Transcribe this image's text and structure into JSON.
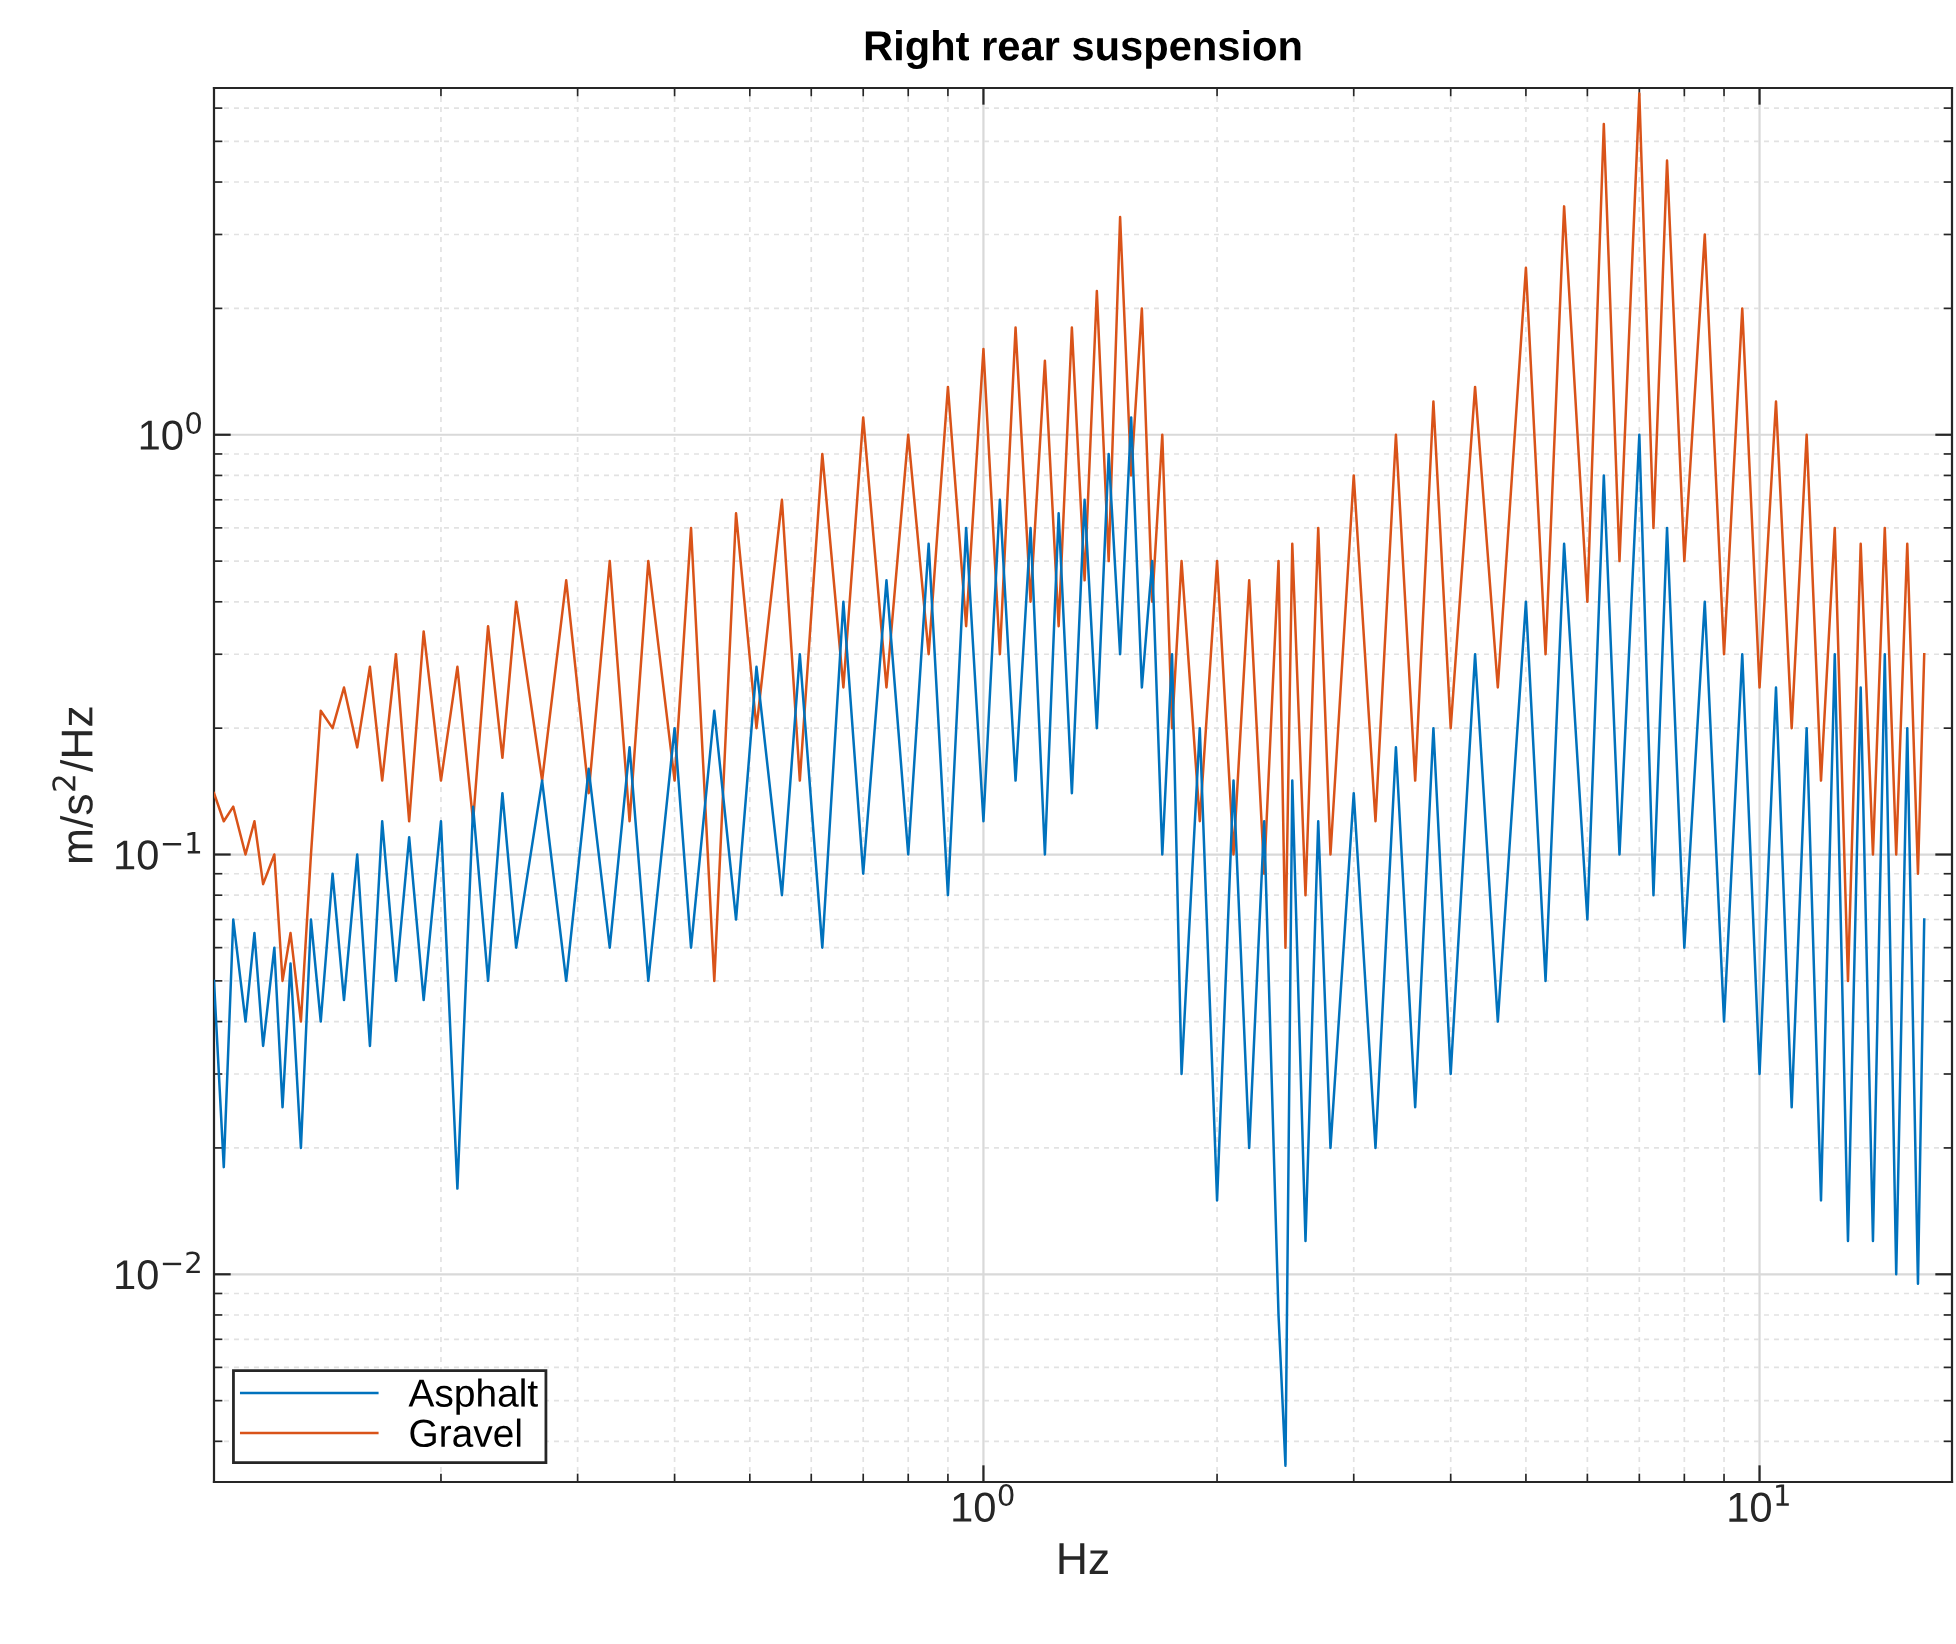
{
  "chart_data": {
    "type": "line",
    "title": "Right rear suspension",
    "xlabel": "Hz",
    "ylabel": "m/s$^{2}$/Hz",
    "log": "xy",
    "grid": true,
    "legend": "bottom left",
    "line_style": "solid",
    "marker": "none",
    "xlim": [
      0.102,
      17.7
    ],
    "ylim": [
      0.0032,
      6.7
    ],
    "xticks": [
      {
        "value": 1,
        "label": "10$^{0}$"
      },
      {
        "value": 10,
        "label": "10$^{1}$"
      }
    ],
    "yticks": [
      {
        "value": 0.01,
        "label": "10$^{−2}$"
      },
      {
        "value": 0.1,
        "label": "10$^{−1}$"
      },
      {
        "value": 1,
        "label": "10$^{0}$"
      }
    ],
    "x": [
      0.102,
      0.105,
      0.108,
      0.112,
      0.115,
      0.118,
      0.122,
      0.125,
      0.128,
      0.132,
      0.136,
      0.14,
      0.145,
      0.15,
      0.156,
      0.162,
      0.168,
      0.175,
      0.182,
      0.19,
      0.2,
      0.21,
      0.22,
      0.23,
      0.24,
      0.25,
      0.27,
      0.29,
      0.31,
      0.33,
      0.35,
      0.37,
      0.4,
      0.42,
      0.45,
      0.48,
      0.51,
      0.55,
      0.58,
      0.62,
      0.66,
      0.7,
      0.75,
      0.8,
      0.85,
      0.9,
      0.95,
      1.0,
      1.05,
      1.1,
      1.15,
      1.2,
      1.25,
      1.3,
      1.35,
      1.4,
      1.45,
      1.5,
      1.55,
      1.6,
      1.65,
      1.7,
      1.75,
      1.8,
      1.9,
      2.0,
      2.1,
      2.2,
      2.3,
      2.4,
      2.45,
      2.5,
      2.6,
      2.7,
      2.8,
      3.0,
      3.2,
      3.4,
      3.6,
      3.8,
      4.0,
      4.3,
      4.6,
      5.0,
      5.3,
      5.6,
      6.0,
      6.3,
      6.6,
      7.0,
      7.3,
      7.6,
      8.0,
      8.5,
      9.0,
      9.5,
      10,
      10.5,
      11,
      11.5,
      12,
      12.5,
      13,
      13.5,
      14,
      14.5,
      15,
      15.5,
      16,
      16.3
    ],
    "series": [
      {
        "name": "Asphalt",
        "color": "#0072bd",
        "values": [
          0.05,
          0.018,
          0.07,
          0.04,
          0.065,
          0.035,
          0.06,
          0.025,
          0.055,
          0.02,
          0.07,
          0.04,
          0.09,
          0.045,
          0.1,
          0.035,
          0.12,
          0.05,
          0.11,
          0.045,
          0.12,
          0.016,
          0.13,
          0.05,
          0.14,
          0.06,
          0.15,
          0.05,
          0.16,
          0.06,
          0.18,
          0.05,
          0.2,
          0.06,
          0.22,
          0.07,
          0.28,
          0.08,
          0.3,
          0.06,
          0.4,
          0.09,
          0.45,
          0.1,
          0.55,
          0.08,
          0.6,
          0.12,
          0.7,
          0.15,
          0.6,
          0.1,
          0.65,
          0.14,
          0.7,
          0.2,
          0.9,
          0.3,
          1.1,
          0.25,
          0.5,
          0.1,
          0.3,
          0.03,
          0.2,
          0.015,
          0.15,
          0.02,
          0.12,
          0.008,
          0.0035,
          0.15,
          0.012,
          0.12,
          0.02,
          0.14,
          0.02,
          0.18,
          0.025,
          0.2,
          0.03,
          0.3,
          0.04,
          0.4,
          0.05,
          0.55,
          0.07,
          0.8,
          0.1,
          1.0,
          0.08,
          0.6,
          0.06,
          0.4,
          0.04,
          0.3,
          0.03,
          0.25,
          0.025,
          0.2,
          0.015,
          0.3,
          0.012,
          0.25,
          0.012,
          0.3,
          0.01,
          0.2,
          0.0095,
          0.07
        ]
      },
      {
        "name": "Gravel",
        "color": "#d95319",
        "values": [
          0.14,
          0.12,
          0.13,
          0.1,
          0.12,
          0.085,
          0.1,
          0.05,
          0.065,
          0.04,
          0.1,
          0.22,
          0.2,
          0.25,
          0.18,
          0.28,
          0.15,
          0.3,
          0.12,
          0.34,
          0.15,
          0.28,
          0.12,
          0.35,
          0.17,
          0.4,
          0.15,
          0.45,
          0.14,
          0.5,
          0.12,
          0.5,
          0.15,
          0.6,
          0.05,
          0.65,
          0.2,
          0.7,
          0.15,
          0.9,
          0.25,
          1.1,
          0.25,
          1.0,
          0.3,
          1.3,
          0.35,
          1.6,
          0.3,
          1.8,
          0.4,
          1.5,
          0.35,
          1.8,
          0.45,
          2.2,
          0.5,
          3.3,
          0.8,
          2.0,
          0.4,
          1.0,
          0.2,
          0.5,
          0.12,
          0.5,
          0.1,
          0.45,
          0.09,
          0.5,
          0.06,
          0.55,
          0.08,
          0.6,
          0.1,
          0.8,
          0.12,
          1.0,
          0.15,
          1.2,
          0.2,
          1.3,
          0.25,
          2.5,
          0.3,
          3.5,
          0.4,
          5.5,
          0.5,
          6.5,
          0.6,
          4.5,
          0.5,
          3.0,
          0.3,
          2.0,
          0.25,
          1.2,
          0.2,
          1.0,
          0.15,
          0.6,
          0.05,
          0.55,
          0.1,
          0.6,
          0.1,
          0.55,
          0.09,
          0.3
        ]
      }
    ]
  }
}
